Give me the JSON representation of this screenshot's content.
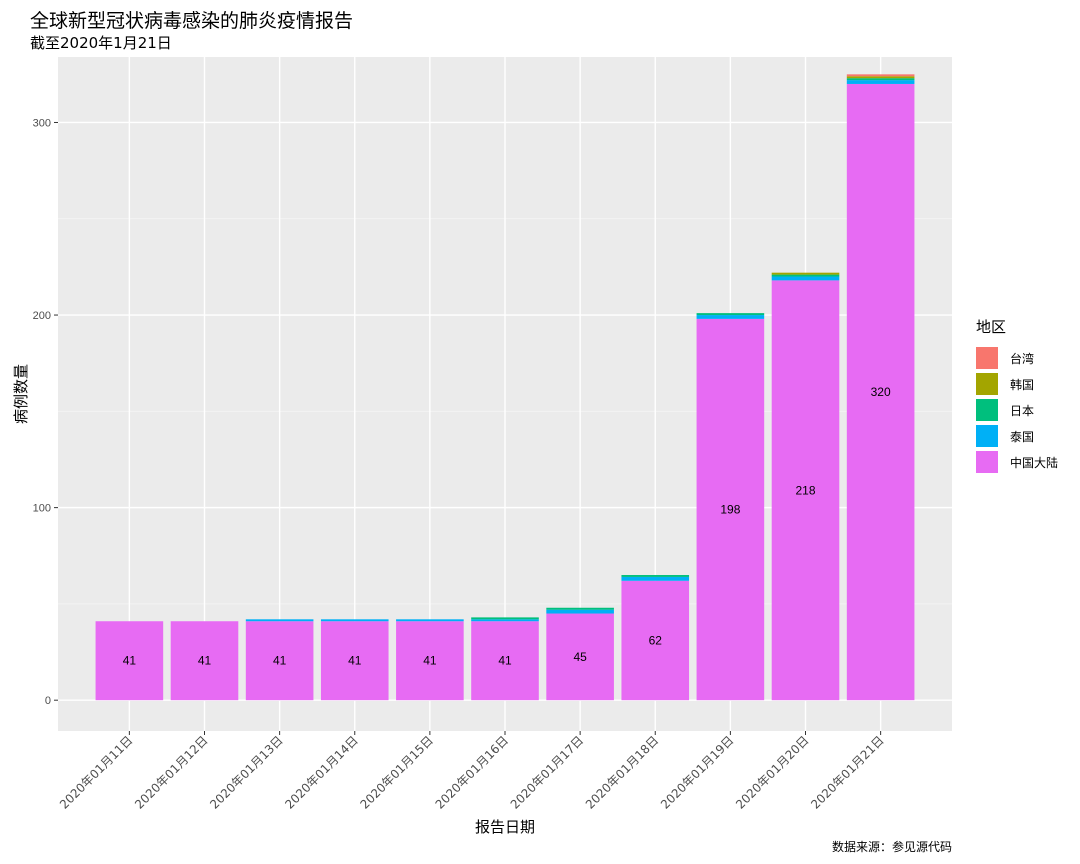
{
  "title": "全球新型冠状病毒感染的肺炎疫情报告",
  "subtitle": "截至2020年1月21日",
  "caption": "数据来源：参见源代码",
  "legend": {
    "title": "地区",
    "items": [
      {
        "label": "台湾",
        "color": "#F8766D"
      },
      {
        "label": "韩国",
        "color": "#A3A500"
      },
      {
        "label": "日本",
        "color": "#00BF7D"
      },
      {
        "label": "泰国",
        "color": "#00B0F6"
      },
      {
        "label": "中国大陆",
        "color": "#E76BF3"
      }
    ]
  },
  "chart_data": {
    "type": "bar",
    "stacked": true,
    "xlabel": "报告日期",
    "ylabel": "病例数量",
    "ylim": [
      -16,
      334
    ],
    "yticks": [
      0,
      100,
      200,
      300
    ],
    "grid": true,
    "legend_position": "right",
    "categories": [
      "2020年01月11日",
      "2020年01月12日",
      "2020年01月13日",
      "2020年01月14日",
      "2020年01月15日",
      "2020年01月16日",
      "2020年01月17日",
      "2020年01月18日",
      "2020年01月19日",
      "2020年01月20日",
      "2020年01月21日"
    ],
    "series": [
      {
        "name": "中国大陆",
        "color": "#E76BF3",
        "values": [
          41,
          41,
          41,
          41,
          41,
          41,
          45,
          62,
          198,
          218,
          320
        ]
      },
      {
        "name": "泰国",
        "color": "#00B0F6",
        "values": [
          0,
          0,
          1,
          1,
          1,
          1,
          2,
          2,
          2,
          2,
          2
        ]
      },
      {
        "name": "日本",
        "color": "#00BF7D",
        "values": [
          0,
          0,
          0,
          0,
          0,
          1,
          1,
          1,
          1,
          1,
          1
        ]
      },
      {
        "name": "韩国",
        "color": "#A3A500",
        "values": [
          0,
          0,
          0,
          0,
          0,
          0,
          0,
          0,
          0,
          1,
          1
        ]
      },
      {
        "name": "台湾",
        "color": "#F8766D",
        "values": [
          0,
          0,
          0,
          0,
          0,
          0,
          0,
          0,
          0,
          0,
          1
        ]
      }
    ],
    "data_labels": [
      "41",
      "41",
      "41",
      "41",
      "41",
      "41",
      "45",
      "62",
      "198",
      "218",
      "320"
    ]
  }
}
